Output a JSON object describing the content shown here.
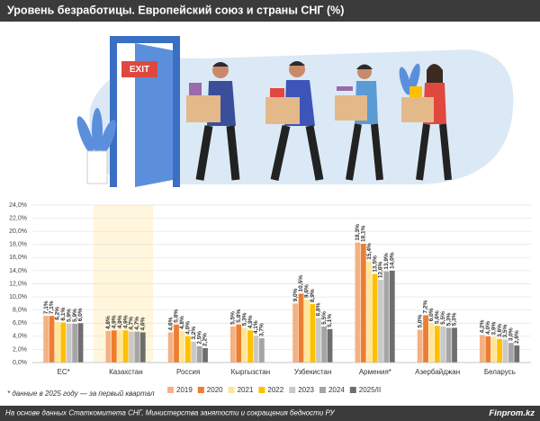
{
  "chart_data": {
    "type": "bar",
    "title": "Уровень безработицы. Европейский союз и страны СНГ (%)",
    "categories": [
      "ЕС*",
      "Казахстан",
      "Россия",
      "Кыргызстан",
      "Узбекистан",
      "Армения*",
      "Азербайджан",
      "Беларусь"
    ],
    "series": [
      {
        "name": "2019",
        "color": "#f4b183",
        "values": [
          7.1,
          4.8,
          4.6,
          5.5,
          9.0,
          18.3,
          5.0,
          4.2
        ],
        "value_labels": [
          "7,1%",
          "4,8%",
          "4,6%",
          "5,5%",
          "9,0%",
          "18,3%",
          "5,0%",
          "4,2%"
        ]
      },
      {
        "name": "2020",
        "color": "#ed7d31",
        "values": [
          7.1,
          4.9,
          5.8,
          5.8,
          10.5,
          18.1,
          7.2,
          4.0
        ],
        "value_labels": [
          "7,1%",
          "4,9%",
          "5,8%",
          "5,8%",
          "10,5%",
          "18,1%",
          "7,2%",
          "4,0%"
        ]
      },
      {
        "name": "2021",
        "color": "#ffe699",
        "values": [
          6.2,
          4.9,
          4.8,
          5.3,
          9.6,
          15.4,
          6.0,
          3.9
        ],
        "value_labels": [
          "6,2%",
          "4,9%",
          "4,8%",
          "5,3%",
          "9,6%",
          "15,4%",
          "6,0%",
          "3,9%"
        ]
      },
      {
        "name": "2022",
        "color": "#ffc000",
        "values": [
          6.1,
          4.9,
          4.0,
          4.9,
          8.9,
          13.5,
          5.6,
          3.6
        ],
        "value_labels": [
          "6,1%",
          "4,9%",
          "4,0%",
          "4,9%",
          "8,9%",
          "13,5%",
          "5,6%",
          "3,6%"
        ]
      },
      {
        "name": "2023",
        "color": "#c9c9c9",
        "values": [
          5.9,
          4.7,
          3.2,
          4.1,
          6.8,
          12.6,
          5.5,
          3.5
        ],
        "value_labels": [
          "5,9%",
          "4,7%",
          "3,2%",
          "4,1%",
          "6,8%",
          "12,6%",
          "5,5%",
          "3,5%"
        ]
      },
      {
        "name": "2024",
        "color": "#a5a5a5",
        "values": [
          5.9,
          4.7,
          2.5,
          3.7,
          5.5,
          13.9,
          5.3,
          3.0
        ],
        "value_labels": [
          "5,9%",
          "4,7%",
          "2,5%",
          "3,7%",
          "5,5%",
          "13,9%",
          "5,3%",
          "3,0%"
        ]
      },
      {
        "name": "2025/II",
        "color": "#6e6e6e",
        "values": [
          6.0,
          4.6,
          2.2,
          null,
          5.1,
          14.0,
          5.3,
          2.6
        ],
        "value_labels": [
          "6,0%",
          "4,6%",
          "2,2%",
          null,
          "5,1%",
          "14,0%",
          "5,3%",
          "2,6%"
        ]
      }
    ],
    "ylim": [
      0,
      24
    ],
    "yticks": [
      {
        "value": 0,
        "label": "0,0%"
      },
      {
        "value": 2,
        "label": "2,0%"
      },
      {
        "value": 4,
        "label": "4,0%"
      },
      {
        "value": 6,
        "label": "6,0%"
      },
      {
        "value": 8,
        "label": "8,0%"
      },
      {
        "value": 10,
        "label": "10,0%"
      },
      {
        "value": 12,
        "label": "12,0%"
      },
      {
        "value": 14,
        "label": "14,0%"
      },
      {
        "value": 16,
        "label": "16,0%"
      },
      {
        "value": 18,
        "label": "18,0%"
      },
      {
        "value": 20,
        "label": "20,0%"
      },
      {
        "value": 22,
        "label": "22,0%"
      },
      {
        "value": 24,
        "label": "24,0%"
      }
    ],
    "grid": true,
    "legend": "bottom",
    "footnote": "* данные в 2025 году — за первый квартал",
    "source": "На основе данных Статкомитета СНГ, Министерства занятости и сокращения бедности РУ",
    "brand": "Finprom.kz"
  },
  "illustration": {
    "sign": "EXIT"
  }
}
